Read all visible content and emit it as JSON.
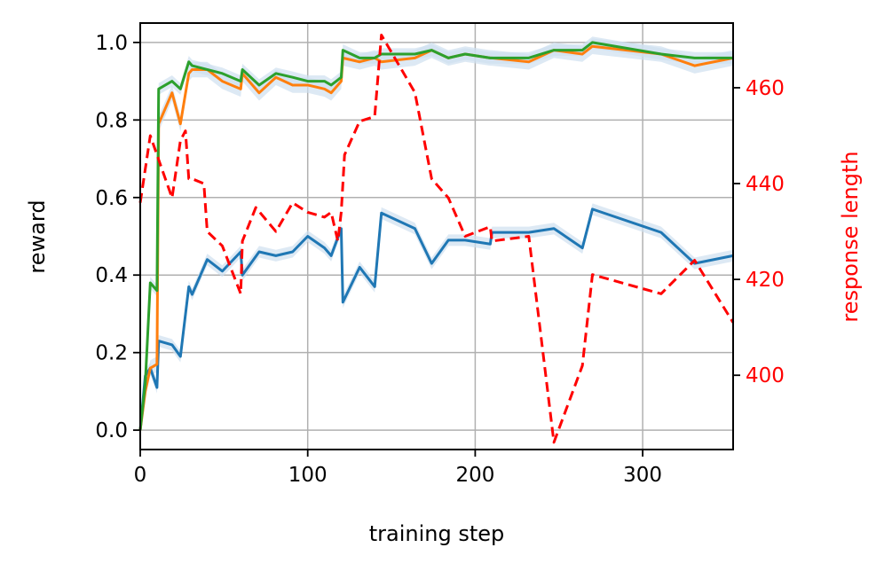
{
  "chart_data": {
    "type": "line",
    "xlabel": "training step",
    "ylabel": "reward",
    "y2label": "response length",
    "xlim": [
      0,
      354
    ],
    "ylim": [
      -0.05,
      1.05
    ],
    "y2lim": [
      384.5,
      473.5
    ],
    "xticks": [
      0,
      100,
      200,
      300
    ],
    "yticks": [
      0.0,
      0.2,
      0.4,
      0.6,
      0.8,
      1.0
    ],
    "y2ticks": [
      400,
      420,
      440,
      460
    ],
    "xtick_labels": [
      "0",
      "100",
      "200",
      "300"
    ],
    "ytick_labels": [
      "0.0",
      "0.2",
      "0.4",
      "0.6",
      "0.8",
      "1.0"
    ],
    "y2tick_labels": [
      "400",
      "420",
      "440",
      "460"
    ],
    "grid": true,
    "colors": {
      "blue": "#1f77b4",
      "orange": "#ff7f0e",
      "green": "#2ca02c",
      "red": "#ff0000",
      "band": "#cfe0f0",
      "grid": "#b0b0b0"
    },
    "series": [
      {
        "color": "blue",
        "axis": "left",
        "style": "solid",
        "band": 0.015,
        "x": [
          0,
          3,
          6,
          10,
          11,
          19,
          24,
          29,
          31,
          40,
          49,
          60,
          61,
          71,
          81,
          91,
          100,
          110,
          114,
          120,
          121,
          131,
          140,
          144,
          164,
          174,
          184,
          194,
          209,
          210,
          232,
          247,
          264,
          270,
          311,
          331,
          354
        ],
        "y": [
          0.0,
          0.14,
          0.16,
          0.11,
          0.23,
          0.22,
          0.19,
          0.37,
          0.35,
          0.44,
          0.41,
          0.46,
          0.4,
          0.46,
          0.45,
          0.46,
          0.5,
          0.47,
          0.45,
          0.52,
          0.33,
          0.42,
          0.37,
          0.56,
          0.52,
          0.43,
          0.49,
          0.49,
          0.48,
          0.51,
          0.51,
          0.52,
          0.47,
          0.57,
          0.51,
          0.43,
          0.45
        ]
      },
      {
        "color": "orange",
        "axis": "left",
        "style": "solid",
        "band": 0.02,
        "x": [
          0,
          3,
          6,
          10,
          11,
          19,
          24,
          29,
          31,
          40,
          49,
          60,
          61,
          71,
          81,
          91,
          100,
          110,
          114,
          120,
          121,
          131,
          140,
          144,
          164,
          174,
          184,
          194,
          209,
          210,
          232,
          247,
          264,
          270,
          311,
          331,
          354
        ],
        "y": [
          0.0,
          0.1,
          0.16,
          0.17,
          0.79,
          0.87,
          0.79,
          0.92,
          0.93,
          0.93,
          0.9,
          0.88,
          0.92,
          0.87,
          0.91,
          0.89,
          0.89,
          0.88,
          0.87,
          0.9,
          0.96,
          0.95,
          0.96,
          0.95,
          0.96,
          0.98,
          0.96,
          0.97,
          0.96,
          0.96,
          0.95,
          0.98,
          0.97,
          0.99,
          0.97,
          0.94,
          0.96
        ]
      },
      {
        "color": "green",
        "axis": "left",
        "style": "solid",
        "band": 0.015,
        "x": [
          0,
          3,
          6,
          10,
          11,
          19,
          24,
          29,
          31,
          40,
          49,
          60,
          61,
          71,
          81,
          91,
          100,
          110,
          114,
          120,
          121,
          131,
          140,
          144,
          164,
          174,
          184,
          194,
          209,
          210,
          232,
          247,
          264,
          270,
          311,
          331,
          354
        ],
        "y": [
          0.0,
          0.12,
          0.38,
          0.36,
          0.88,
          0.9,
          0.88,
          0.95,
          0.94,
          0.93,
          0.92,
          0.9,
          0.93,
          0.89,
          0.92,
          0.91,
          0.9,
          0.9,
          0.89,
          0.91,
          0.98,
          0.96,
          0.96,
          0.97,
          0.97,
          0.98,
          0.96,
          0.97,
          0.96,
          0.96,
          0.96,
          0.98,
          0.98,
          1.0,
          0.97,
          0.96,
          0.96
        ]
      },
      {
        "color": "red",
        "axis": "right",
        "style": "dashed",
        "x": [
          0,
          3,
          6,
          10,
          19,
          24,
          27,
          29,
          31,
          38,
          40,
          49,
          60,
          61,
          69,
          81,
          91,
          100,
          110,
          114,
          118,
          120,
          122,
          131,
          140,
          144,
          164,
          174,
          184,
          194,
          209,
          210,
          232,
          247,
          264,
          270,
          311,
          331,
          354
        ],
        "y": [
          436,
          443,
          450,
          446,
          437,
          449,
          451,
          441,
          441,
          440,
          430,
          427,
          417,
          428,
          435,
          430,
          436,
          434,
          433,
          434,
          428,
          434,
          446,
          453,
          454,
          471,
          459,
          441,
          437,
          429,
          431,
          428,
          429,
          386,
          402,
          421,
          417,
          424,
          411
        ]
      }
    ]
  }
}
